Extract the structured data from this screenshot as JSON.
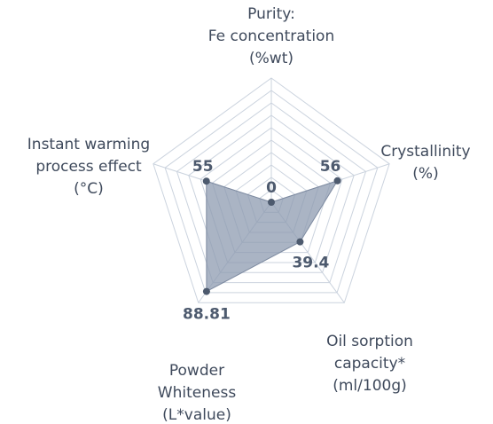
{
  "chart_data": {
    "type": "radar",
    "categories": [
      [
        "Purity:",
        "Fe concentration",
        "(%wt)"
      ],
      [
        "Crystallinity",
        "(%)"
      ],
      [
        "Oil sorption",
        "capacity*",
        "(ml/100g)"
      ],
      [
        "Powder",
        "Whiteness",
        "(L*value)"
      ],
      [
        "Instant warming",
        "process effect",
        "(°C)"
      ]
    ],
    "values": [
      0,
      56,
      39.4,
      88.81,
      55
    ],
    "rlim": [
      0,
      100
    ],
    "color": "#8d9bb0"
  }
}
